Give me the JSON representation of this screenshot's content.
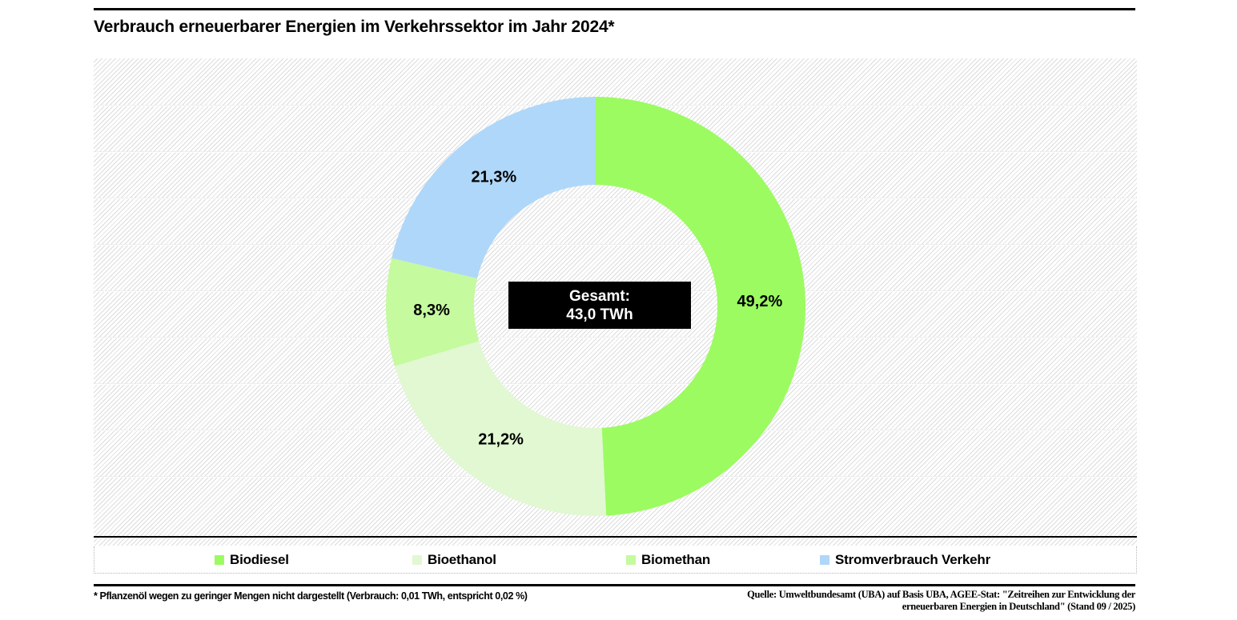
{
  "title": "Verbrauch erneuerbarer Energien im Verkehrssektor im Jahr 2024*",
  "chart_data": {
    "type": "pie",
    "subtype": "donut",
    "title": "Verbrauch erneuerbarer Energien im Verkehrssektor im Jahr 2024*",
    "categories": [
      "Biodiesel",
      "Bioethanol",
      "Biomethan",
      "Stromverbrauch Verkehr"
    ],
    "values": [
      49.2,
      21.2,
      8.3,
      21.3
    ],
    "value_labels": [
      "49,2%",
      "21,2%",
      "8,3%",
      "21,3%"
    ],
    "colors": [
      "#9CFB61",
      "#E1F8D2",
      "#C5FA9E",
      "#AFD7F9"
    ],
    "unit": "%",
    "total_label": {
      "line1": "Gesamt:",
      "line2": "43,0 TWh"
    },
    "start_angle_deg": 0,
    "direction": "clockwise",
    "legend_position": "bottom",
    "grid": "faint horizontal dotted lines on hatched background"
  },
  "center_label": {
    "line1": "Gesamt:",
    "line2": "43,0 TWh",
    "background": "#000000",
    "text_color": "#ffffff"
  },
  "legend": {
    "items": [
      {
        "label": "Biodiesel",
        "color": "#9CFB61"
      },
      {
        "label": "Bioethanol",
        "color": "#E1F8D2"
      },
      {
        "label": "Biomethan",
        "color": "#C5FA9E"
      },
      {
        "label": "Stromverbrauch Verkehr",
        "color": "#AFD7F9"
      }
    ]
  },
  "footnote": "* Pflanzenöl wegen zu geringer Mengen nicht dargestellt (Verbrauch: 0,01 TWh, entspricht 0,02 %)",
  "source": {
    "line1": "Quelle: Umweltbundesamt (UBA) auf Basis UBA, AGEE-Stat: \"Zeitreihen zur Entwicklung der",
    "line2": "erneuerbaren Energien in Deutschland\" (Stand 09 / 2025)"
  }
}
